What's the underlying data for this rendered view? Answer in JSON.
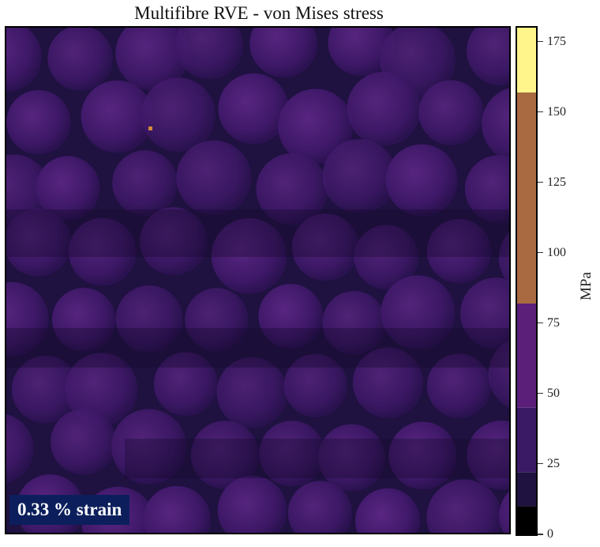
{
  "title": "Multifibre RVE - von Mises stress",
  "overlay_label": "0.33 % strain",
  "colorbar": {
    "unit": "MPa",
    "min": 0,
    "max": 180,
    "ticks": [
      "0",
      "25",
      "50",
      "75",
      "100",
      "125",
      "150",
      "175"
    ],
    "tick_values": [
      0,
      25,
      50,
      75,
      100,
      125,
      150,
      175
    ],
    "colors": {
      "low": "#000000",
      "fibre": "#3a1a64",
      "matrix": "#1f1140",
      "mid": "#5b1f7a",
      "high_band": "#a96a42",
      "peak": "#fff58a"
    }
  }
}
